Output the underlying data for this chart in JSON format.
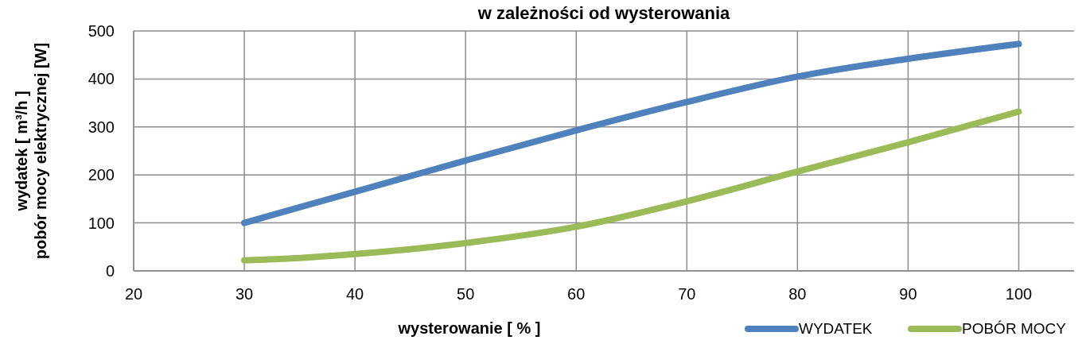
{
  "chart_data": {
    "type": "line",
    "title": "w zależności od wysterowania",
    "xlabel": "wysterowanie  [ % ]",
    "ylabel": "wydatek [ m³/h ]\npobór mocy elektrycznej [W]",
    "xlim": [
      20,
      105
    ],
    "xticks": [
      20,
      30,
      40,
      50,
      60,
      70,
      80,
      90,
      100
    ],
    "ylim": [
      0,
      500
    ],
    "yticks": [
      0,
      100,
      200,
      300,
      400,
      500
    ],
    "grid": true,
    "legend": "bottom right",
    "marker": "none",
    "line_style": "solid",
    "series": [
      {
        "name": "WYDATEK",
        "color": "#4f81bd",
        "x": [
          30,
          40,
          50,
          60,
          70,
          80,
          90,
          100
        ],
        "values": [
          100,
          165,
          230,
          293,
          352,
          405,
          442,
          473
        ]
      },
      {
        "name": "POBÓR  MOCY",
        "color": "#9bbb59",
        "x": [
          30,
          35,
          40,
          50,
          60,
          70,
          80,
          90,
          100
        ],
        "values": [
          22,
          27,
          35,
          58,
          92,
          145,
          207,
          268,
          332
        ]
      }
    ]
  }
}
